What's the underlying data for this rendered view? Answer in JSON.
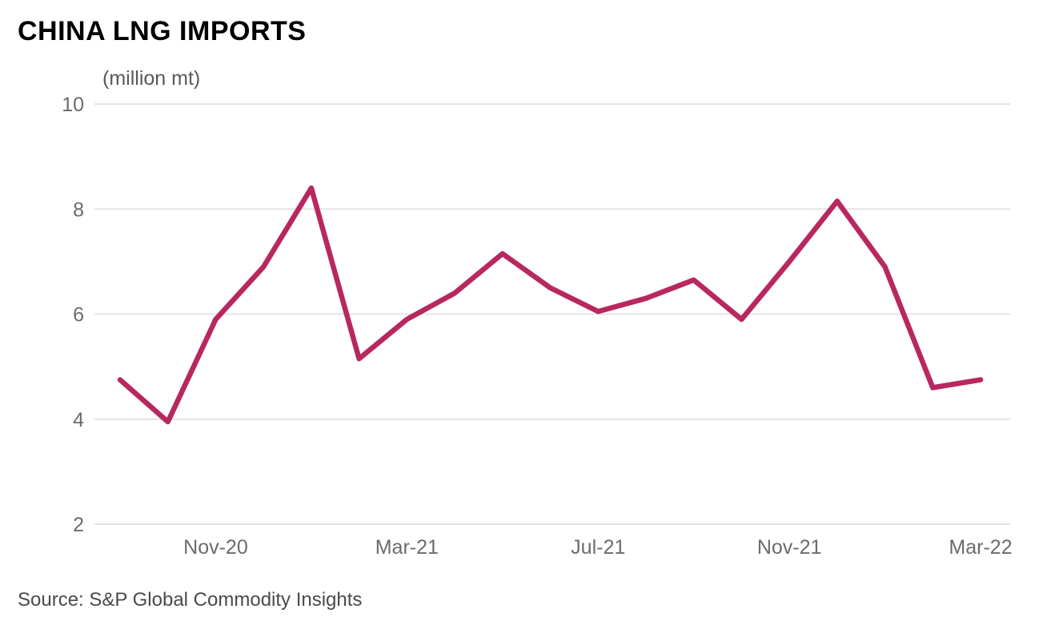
{
  "header": {
    "title": "CHINA LNG IMPORTS",
    "unit_label": "(million mt)"
  },
  "footer": {
    "source": "Source: S&P Global Commodity Insights"
  },
  "colors": {
    "line": "#b8285f",
    "axis_text": "#6b6b6b",
    "grid": "#e4e4e4",
    "title": "#000000",
    "source_text": "#4a4a4a",
    "background": "#ffffff"
  },
  "chart_data": {
    "type": "line",
    "title": "CHINA LNG IMPORTS",
    "ylabel": "(million mt)",
    "x": [
      "Sep-20",
      "Oct-20",
      "Nov-20",
      "Dec-20",
      "Jan-21",
      "Feb-21",
      "Mar-21",
      "Apr-21",
      "May-21",
      "Jun-21",
      "Jul-21",
      "Aug-21",
      "Sep-21",
      "Oct-21",
      "Nov-21",
      "Dec-21",
      "Jan-22",
      "Feb-22",
      "Mar-22"
    ],
    "values": [
      4.75,
      3.95,
      5.9,
      6.9,
      8.4,
      5.15,
      5.9,
      6.4,
      7.15,
      6.5,
      6.05,
      6.3,
      6.65,
      5.9,
      7.0,
      8.15,
      6.9,
      4.6,
      4.75
    ],
    "ylim": [
      2,
      10
    ],
    "yticks": [
      2,
      4,
      6,
      8,
      10
    ],
    "xtick_labels": [
      "Nov-20",
      "Mar-21",
      "Jul-21",
      "Nov-21",
      "Mar-22"
    ],
    "xtick_indices": [
      2,
      6,
      10,
      14,
      18
    ],
    "grid": true,
    "legend": false,
    "line_width": 6.5
  }
}
